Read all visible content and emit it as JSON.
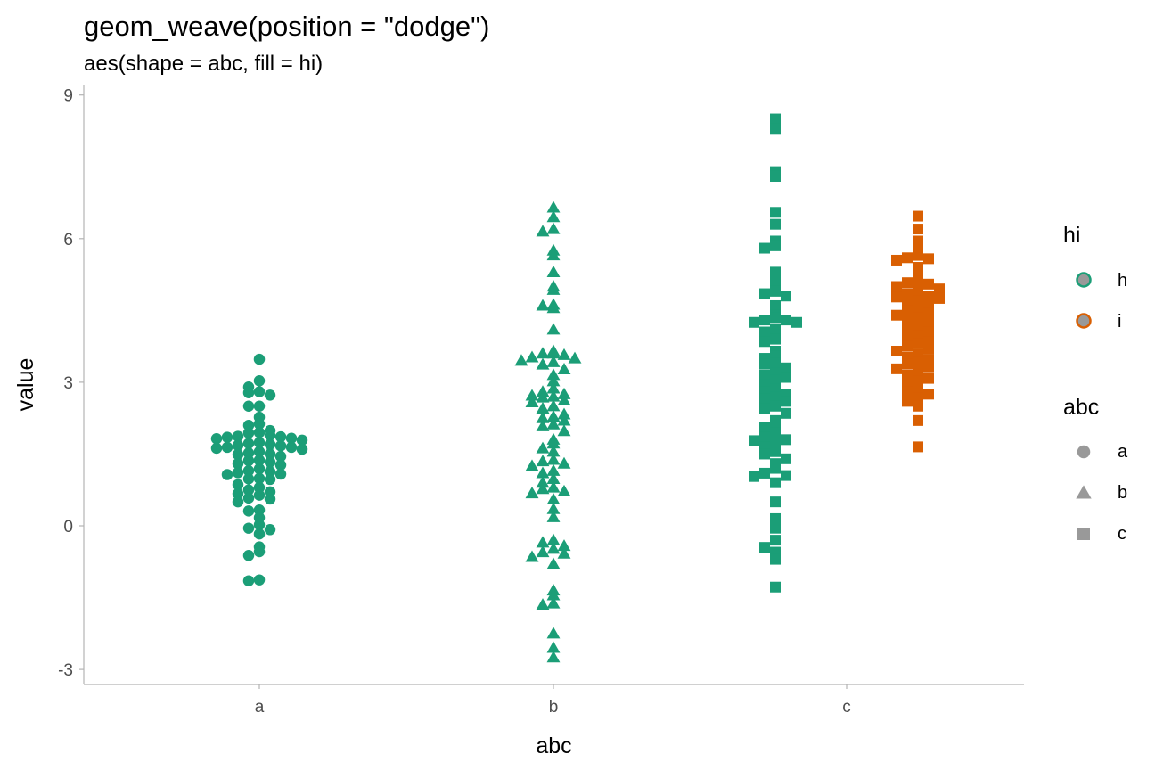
{
  "chart_data": {
    "type": "scatter",
    "title": "geom_weave(position = \"dodge\")",
    "subtitle": "aes(shape = abc, fill = hi)",
    "xlabel": "abc",
    "ylabel": "value",
    "categories": [
      "a",
      "b",
      "c"
    ],
    "ylim": [
      -3.3,
      9.05
    ],
    "yticks": [
      -3,
      0,
      3,
      6,
      9
    ],
    "yticklabels": [
      "-3",
      "0",
      "3",
      "6",
      "9"
    ],
    "grid": false,
    "legend_placement": "right",
    "legends": [
      {
        "title": "hi",
        "entries": [
          {
            "label": "h",
            "color": "#1b9e77"
          },
          {
            "label": "i",
            "color": "#d95f02"
          }
        ]
      },
      {
        "title": "abc",
        "entries": [
          {
            "label": "a",
            "shape": "circle"
          },
          {
            "label": "b",
            "shape": "triangle"
          },
          {
            "label": "c",
            "shape": "square"
          }
        ]
      }
    ],
    "colors": {
      "h": "#1b9e77",
      "i": "#d95f02",
      "legend_fill": "#999999",
      "axis": "#b3b3b3",
      "tick_text": "#4d4d4d"
    },
    "series": [
      {
        "category": "a",
        "hi": "h",
        "shape": "circle",
        "values": [
          3.48,
          3.03,
          2.9,
          2.8,
          2.78,
          2.73,
          2.5,
          2.5,
          2.27,
          2.13,
          2.1,
          1.99,
          1.95,
          1.94,
          1.89,
          1.87,
          1.86,
          1.85,
          1.83,
          1.82,
          1.79,
          1.74,
          1.72,
          1.7,
          1.68,
          1.67,
          1.64,
          1.64,
          1.62,
          1.6,
          1.55,
          1.52,
          1.5,
          1.49,
          1.45,
          1.37,
          1.36,
          1.33,
          1.3,
          1.27,
          1.19,
          1.15,
          1.13,
          1.11,
          1.08,
          1.07,
          0.99,
          0.98,
          0.97,
          0.86,
          0.8,
          0.75,
          0.71,
          0.67,
          0.64,
          0.58,
          0.56,
          0.5,
          0.33,
          0.31,
          0.17,
          0.02,
          -0.05,
          -0.08,
          -0.17,
          -0.44,
          -0.54,
          -0.62,
          -1.13,
          -1.15
        ]
      },
      {
        "category": "b",
        "hi": "h",
        "shape": "triangle",
        "values": [
          6.65,
          6.45,
          6.2,
          6.15,
          5.75,
          5.65,
          5.3,
          5.0,
          4.93,
          4.62,
          4.6,
          4.55,
          4.1,
          3.65,
          3.6,
          3.6,
          3.57,
          3.52,
          3.5,
          3.45,
          3.42,
          3.37,
          3.27,
          3.15,
          3.02,
          2.87,
          2.8,
          2.75,
          2.72,
          2.7,
          2.68,
          2.62,
          2.58,
          2.5,
          2.45,
          2.33,
          2.28,
          2.25,
          2.2,
          2.12,
          2.08,
          1.98,
          1.8,
          1.72,
          1.62,
          1.55,
          1.38,
          1.35,
          1.3,
          1.25,
          1.15,
          1.1,
          0.98,
          0.9,
          0.8,
          0.77,
          0.72,
          0.68,
          0.55,
          0.35,
          0.18,
          -0.3,
          -0.35,
          -0.42,
          -0.48,
          -0.55,
          -0.58,
          -0.65,
          -0.8,
          -1.35,
          -1.45,
          -1.62,
          -1.65,
          -2.25,
          -2.55,
          -2.75
        ]
      },
      {
        "category": "c",
        "hi": "h",
        "shape": "square",
        "values": [
          8.5,
          8.3,
          7.4,
          7.3,
          6.55,
          6.3,
          5.95,
          5.85,
          5.8,
          5.3,
          5.1,
          4.9,
          4.85,
          4.8,
          4.6,
          4.4,
          4.35,
          4.3,
          4.3,
          4.25,
          4.25,
          4.1,
          4.05,
          3.9,
          3.85,
          3.65,
          3.55,
          3.5,
          3.4,
          3.38,
          3.3,
          3.2,
          3.15,
          3.1,
          3.05,
          2.95,
          2.85,
          2.8,
          2.75,
          2.7,
          2.65,
          2.6,
          2.5,
          2.45,
          2.35,
          2.2,
          2.12,
          2.05,
          1.95,
          1.85,
          1.8,
          1.78,
          1.72,
          1.65,
          1.55,
          1.5,
          1.4,
          1.3,
          1.2,
          1.1,
          1.05,
          1.03,
          0.9,
          0.5,
          0.15,
          -0.05,
          -0.3,
          -0.45,
          -0.55,
          -0.7,
          -1.28
        ]
      },
      {
        "category": "c",
        "hi": "i",
        "shape": "square",
        "values": [
          6.47,
          6.2,
          5.95,
          5.82,
          5.65,
          5.6,
          5.58,
          5.55,
          5.4,
          5.2,
          5.12,
          5.08,
          5.05,
          5.0,
          4.95,
          4.9,
          4.85,
          4.8,
          4.78,
          4.75,
          4.7,
          4.62,
          4.6,
          4.55,
          4.5,
          4.45,
          4.4,
          4.35,
          4.3,
          4.25,
          4.18,
          4.1,
          4.05,
          3.98,
          3.92,
          3.85,
          3.8,
          3.75,
          3.7,
          3.65,
          3.58,
          3.52,
          3.48,
          3.42,
          3.38,
          3.32,
          3.28,
          3.22,
          3.15,
          3.08,
          3.02,
          2.95,
          2.88,
          2.8,
          2.75,
          2.68,
          2.6,
          2.5,
          2.2,
          1.65
        ]
      }
    ]
  }
}
